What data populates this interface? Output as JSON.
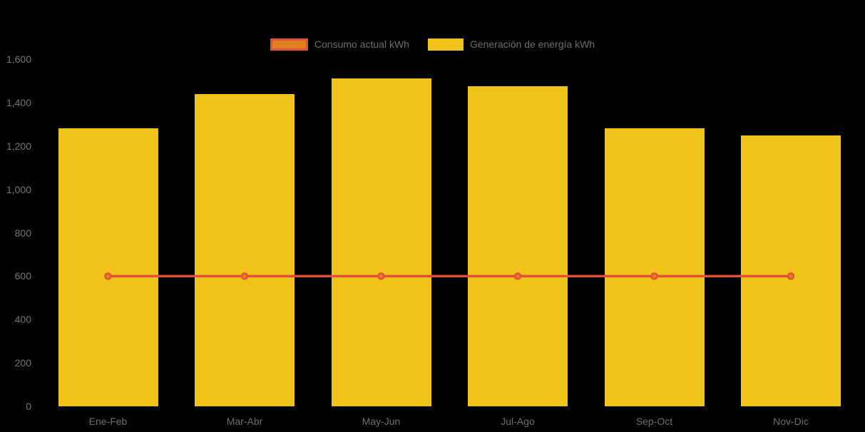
{
  "chart_data": {
    "type": "bar",
    "title": "",
    "categories": [
      "Ene-Feb",
      "Mar-Abr",
      "May-Jun",
      "Jul-Ago",
      "Sep-Oct",
      "Nov-Dic"
    ],
    "series": [
      {
        "name": "Consumo actual kWh",
        "type": "line",
        "values": [
          600,
          600,
          600,
          600,
          600,
          600
        ],
        "line_color": "#e2503c",
        "marker_fill": "#df8021"
      },
      {
        "name": "Generación de energía kWh",
        "type": "bar",
        "values": [
          1280,
          1440,
          1510,
          1475,
          1280,
          1250
        ],
        "color": "#efc319"
      }
    ],
    "xlabel": "",
    "ylabel": "",
    "ylim": [
      0,
      1600
    ],
    "ytick_step": 200,
    "ytick_labels": [
      "0",
      "200",
      "400",
      "600",
      "800",
      "1,000",
      "1,200",
      "1,400",
      "1,600"
    ],
    "legend_position": "top-center",
    "grid": false,
    "background_color": "#000000",
    "axis_text_color": "#6f6f6f"
  }
}
